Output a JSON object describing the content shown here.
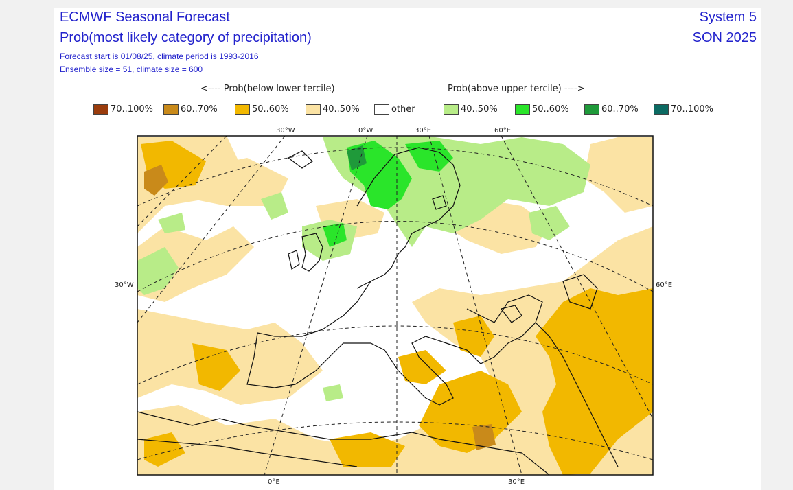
{
  "header": {
    "title": "ECMWF Seasonal Forecast",
    "subtitle": "Prob(most likely category of precipitation)",
    "info_line1": "Forecast start is 01/08/25, climate period is 1993-2016",
    "info_line2": "Ensemble size = 51, climate size = 600",
    "system": "System 5",
    "season": "SON 2025"
  },
  "legend": {
    "below_label": "<---- Prob(below lower tercile)",
    "above_label": "Prob(above upper tercile) ---->",
    "items": [
      {
        "label": "70..100%",
        "color": "#9a3c0c"
      },
      {
        "label": "60..70%",
        "color": "#c98a1a"
      },
      {
        "label": "50..60%",
        "color": "#f2b800"
      },
      {
        "label": "40..50%",
        "color": "#fbe3a4"
      },
      {
        "label": "other",
        "color": "#ffffff"
      },
      {
        "label": "40..50%",
        "color": "#b8ec88"
      },
      {
        "label": "50..60%",
        "color": "#2ae52a"
      },
      {
        "label": "60..70%",
        "color": "#1f9a3a"
      },
      {
        "label": "70..100%",
        "color": "#0c6a62"
      }
    ]
  },
  "map": {
    "projection": "polar stereographic",
    "lon_labels_top": [
      "30°W",
      "0°W",
      "30°E",
      "60°E"
    ],
    "lon_labels_bottom": [
      "0°E",
      "30°E"
    ],
    "lat_label_left": "30°W",
    "lat_label_right": "60°E"
  }
}
